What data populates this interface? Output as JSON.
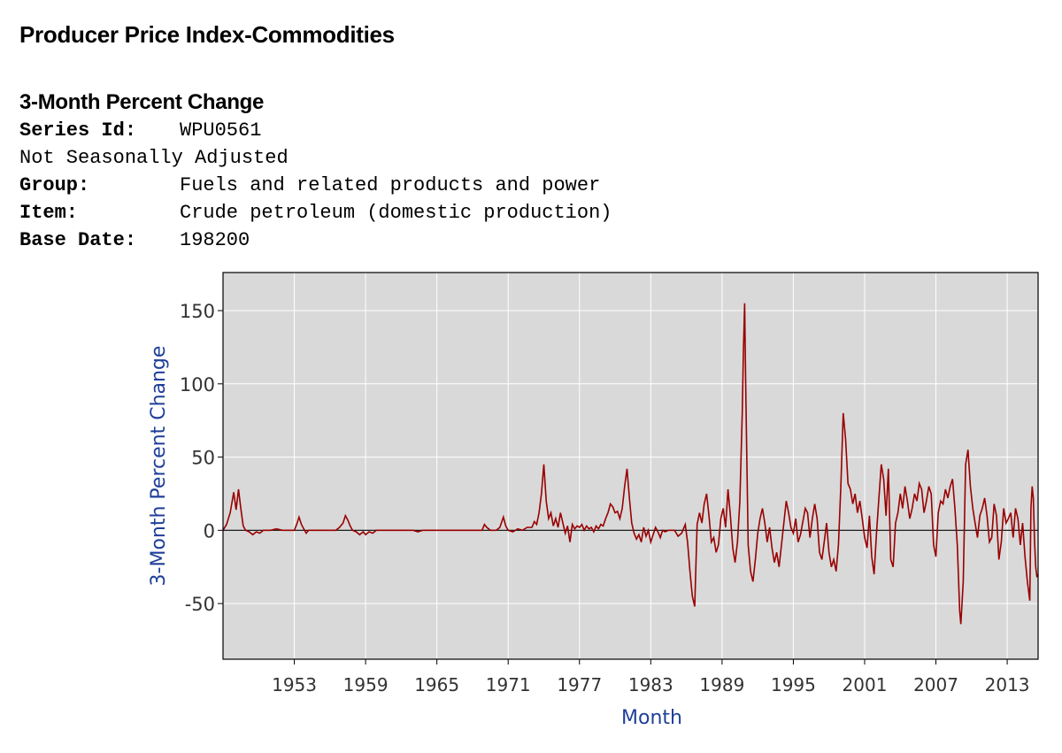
{
  "header": {
    "title": "Producer Price Index-Commodities",
    "subtitle": "3-Month Percent Change",
    "fields": [
      {
        "label": "Series Id:",
        "value": "WPU0561"
      },
      {
        "label": "",
        "value": "Not Seasonally Adjusted"
      },
      {
        "label": "Group:",
        "value": "Fuels and related products and power"
      },
      {
        "label": "Item:",
        "value": "Crude petroleum (domestic production)"
      },
      {
        "label": "Base Date:",
        "value": "198200"
      }
    ]
  },
  "colors": {
    "plot_bg": "#d9d9d9",
    "grid": "#ffffff",
    "line": "#990000",
    "zero_line": "#000000",
    "axis_title": "#1f3f99",
    "tick_text": "#333333"
  },
  "chart_data": {
    "type": "line",
    "title": "3-Month Percent Change",
    "xlabel": "Month",
    "ylabel": "3-Month Percent Change",
    "ylim": [
      -88,
      176
    ],
    "xlim": [
      1947.0,
      2015.6
    ],
    "yticks": [
      -50,
      0,
      50,
      100,
      150
    ],
    "xticks": [
      "1953",
      "1959",
      "1965",
      "1971",
      "1977",
      "1983",
      "1989",
      "1995",
      "2001",
      "2007",
      "2013"
    ],
    "grid": true,
    "series": [
      {
        "name": "WPU0561",
        "points": [
          [
            1947.0,
            0
          ],
          [
            1947.3,
            4
          ],
          [
            1947.6,
            12
          ],
          [
            1947.9,
            26
          ],
          [
            1948.1,
            14
          ],
          [
            1948.3,
            28
          ],
          [
            1948.5,
            15
          ],
          [
            1948.7,
            3
          ],
          [
            1948.9,
            0
          ],
          [
            1949.2,
            -1
          ],
          [
            1949.5,
            -3
          ],
          [
            1949.8,
            -1
          ],
          [
            1950.1,
            -2
          ],
          [
            1950.4,
            0
          ],
          [
            1951.0,
            0
          ],
          [
            1951.5,
            1
          ],
          [
            1952.0,
            0
          ],
          [
            1953.0,
            0
          ],
          [
            1953.2,
            4
          ],
          [
            1953.4,
            9
          ],
          [
            1953.6,
            4
          ],
          [
            1953.8,
            1
          ],
          [
            1954.0,
            -2
          ],
          [
            1954.2,
            0
          ],
          [
            1955.0,
            0
          ],
          [
            1956.5,
            0
          ],
          [
            1956.8,
            2
          ],
          [
            1957.1,
            5
          ],
          [
            1957.3,
            10
          ],
          [
            1957.5,
            7
          ],
          [
            1957.7,
            3
          ],
          [
            1957.9,
            0
          ],
          [
            1958.2,
            -1
          ],
          [
            1958.5,
            -3
          ],
          [
            1958.8,
            -1
          ],
          [
            1959.0,
            -3
          ],
          [
            1959.3,
            -1
          ],
          [
            1959.6,
            -2
          ],
          [
            1959.9,
            0
          ],
          [
            1960.5,
            0
          ],
          [
            1961.5,
            0
          ],
          [
            1963.0,
            0
          ],
          [
            1963.4,
            -1
          ],
          [
            1963.8,
            0
          ],
          [
            1965.0,
            0
          ],
          [
            1967.0,
            0
          ],
          [
            1968.8,
            0
          ],
          [
            1969.0,
            4
          ],
          [
            1969.2,
            2
          ],
          [
            1969.5,
            0
          ],
          [
            1970.0,
            0
          ],
          [
            1970.3,
            2
          ],
          [
            1970.6,
            9
          ],
          [
            1970.8,
            3
          ],
          [
            1971.0,
            0
          ],
          [
            1971.4,
            -1
          ],
          [
            1971.8,
            1
          ],
          [
            1972.2,
            0
          ],
          [
            1972.6,
            2
          ],
          [
            1973.0,
            2
          ],
          [
            1973.2,
            6
          ],
          [
            1973.4,
            4
          ],
          [
            1973.6,
            12
          ],
          [
            1973.8,
            25
          ],
          [
            1974.0,
            45
          ],
          [
            1974.2,
            20
          ],
          [
            1974.4,
            8
          ],
          [
            1974.6,
            12
          ],
          [
            1974.8,
            3
          ],
          [
            1975.0,
            8
          ],
          [
            1975.2,
            2
          ],
          [
            1975.4,
            12
          ],
          [
            1975.6,
            5
          ],
          [
            1975.8,
            -2
          ],
          [
            1976.0,
            3
          ],
          [
            1976.2,
            -8
          ],
          [
            1976.4,
            4
          ],
          [
            1976.6,
            1
          ],
          [
            1976.8,
            3
          ],
          [
            1977.0,
            2
          ],
          [
            1977.2,
            4
          ],
          [
            1977.4,
            0
          ],
          [
            1977.6,
            3
          ],
          [
            1977.8,
            1
          ],
          [
            1978.0,
            2
          ],
          [
            1978.2,
            -1
          ],
          [
            1978.4,
            3
          ],
          [
            1978.6,
            1
          ],
          [
            1978.8,
            4
          ],
          [
            1979.0,
            3
          ],
          [
            1979.2,
            8
          ],
          [
            1979.4,
            12
          ],
          [
            1979.6,
            18
          ],
          [
            1979.8,
            16
          ],
          [
            1980.0,
            12
          ],
          [
            1980.2,
            13
          ],
          [
            1980.4,
            8
          ],
          [
            1980.6,
            15
          ],
          [
            1980.8,
            30
          ],
          [
            1981.0,
            42
          ],
          [
            1981.2,
            22
          ],
          [
            1981.4,
            5
          ],
          [
            1981.6,
            -2
          ],
          [
            1981.8,
            -6
          ],
          [
            1982.0,
            -3
          ],
          [
            1982.2,
            -8
          ],
          [
            1982.4,
            2
          ],
          [
            1982.6,
            -4
          ],
          [
            1982.8,
            0
          ],
          [
            1983.0,
            -8
          ],
          [
            1983.2,
            -3
          ],
          [
            1983.4,
            2
          ],
          [
            1983.6,
            -1
          ],
          [
            1983.8,
            -5
          ],
          [
            1984.0,
            0
          ],
          [
            1984.2,
            -1
          ],
          [
            1984.5,
            0
          ],
          [
            1985.0,
            0
          ],
          [
            1985.3,
            -4
          ],
          [
            1985.6,
            -2
          ],
          [
            1985.9,
            4
          ],
          [
            1986.1,
            -8
          ],
          [
            1986.3,
            -28
          ],
          [
            1986.5,
            -45
          ],
          [
            1986.7,
            -52
          ],
          [
            1986.9,
            4
          ],
          [
            1987.1,
            12
          ],
          [
            1987.3,
            5
          ],
          [
            1987.5,
            18
          ],
          [
            1987.7,
            25
          ],
          [
            1987.9,
            10
          ],
          [
            1988.1,
            -8
          ],
          [
            1988.3,
            -5
          ],
          [
            1988.5,
            -15
          ],
          [
            1988.7,
            -10
          ],
          [
            1988.9,
            8
          ],
          [
            1989.1,
            15
          ],
          [
            1989.3,
            2
          ],
          [
            1989.5,
            28
          ],
          [
            1989.7,
            10
          ],
          [
            1989.9,
            -12
          ],
          [
            1990.1,
            -22
          ],
          [
            1990.3,
            -8
          ],
          [
            1990.5,
            20
          ],
          [
            1990.7,
            80
          ],
          [
            1990.8,
            122
          ],
          [
            1990.9,
            155
          ],
          [
            1991.0,
            95
          ],
          [
            1991.1,
            40
          ],
          [
            1991.2,
            -10
          ],
          [
            1991.4,
            -28
          ],
          [
            1991.6,
            -35
          ],
          [
            1991.8,
            -20
          ],
          [
            1992.0,
            -2
          ],
          [
            1992.2,
            8
          ],
          [
            1992.4,
            15
          ],
          [
            1992.6,
            5
          ],
          [
            1992.8,
            -8
          ],
          [
            1993.0,
            2
          ],
          [
            1993.2,
            -12
          ],
          [
            1993.4,
            -22
          ],
          [
            1993.6,
            -15
          ],
          [
            1993.8,
            -25
          ],
          [
            1994.0,
            -10
          ],
          [
            1994.2,
            5
          ],
          [
            1994.4,
            20
          ],
          [
            1994.6,
            12
          ],
          [
            1994.8,
            2
          ],
          [
            1995.0,
            -2
          ],
          [
            1995.2,
            8
          ],
          [
            1995.4,
            -8
          ],
          [
            1995.6,
            -3
          ],
          [
            1995.8,
            6
          ],
          [
            1996.0,
            15
          ],
          [
            1996.2,
            12
          ],
          [
            1996.4,
            -5
          ],
          [
            1996.6,
            8
          ],
          [
            1996.8,
            18
          ],
          [
            1997.0,
            8
          ],
          [
            1997.2,
            -15
          ],
          [
            1997.4,
            -20
          ],
          [
            1997.6,
            -8
          ],
          [
            1997.8,
            5
          ],
          [
            1998.0,
            -15
          ],
          [
            1998.2,
            -25
          ],
          [
            1998.4,
            -20
          ],
          [
            1998.6,
            -28
          ],
          [
            1998.8,
            -10
          ],
          [
            1999.0,
            30
          ],
          [
            1999.2,
            80
          ],
          [
            1999.4,
            62
          ],
          [
            1999.6,
            32
          ],
          [
            1999.8,
            28
          ],
          [
            2000.0,
            18
          ],
          [
            2000.2,
            25
          ],
          [
            2000.4,
            12
          ],
          [
            2000.6,
            20
          ],
          [
            2000.8,
            8
          ],
          [
            2001.0,
            -5
          ],
          [
            2001.2,
            -12
          ],
          [
            2001.4,
            10
          ],
          [
            2001.6,
            -18
          ],
          [
            2001.8,
            -30
          ],
          [
            2002.0,
            -2
          ],
          [
            2002.2,
            22
          ],
          [
            2002.4,
            45
          ],
          [
            2002.6,
            35
          ],
          [
            2002.8,
            10
          ],
          [
            2003.0,
            42
          ],
          [
            2003.2,
            -20
          ],
          [
            2003.4,
            -25
          ],
          [
            2003.6,
            5
          ],
          [
            2003.8,
            12
          ],
          [
            2004.0,
            25
          ],
          [
            2004.2,
            15
          ],
          [
            2004.4,
            30
          ],
          [
            2004.6,
            20
          ],
          [
            2004.8,
            8
          ],
          [
            2005.0,
            15
          ],
          [
            2005.2,
            25
          ],
          [
            2005.4,
            20
          ],
          [
            2005.6,
            32
          ],
          [
            2005.8,
            28
          ],
          [
            2006.0,
            12
          ],
          [
            2006.2,
            20
          ],
          [
            2006.4,
            30
          ],
          [
            2006.6,
            25
          ],
          [
            2006.8,
            -10
          ],
          [
            2007.0,
            -18
          ],
          [
            2007.2,
            12
          ],
          [
            2007.4,
            20
          ],
          [
            2007.6,
            18
          ],
          [
            2007.8,
            28
          ],
          [
            2008.0,
            22
          ],
          [
            2008.2,
            30
          ],
          [
            2008.4,
            35
          ],
          [
            2008.6,
            15
          ],
          [
            2008.8,
            -10
          ],
          [
            2009.0,
            -55
          ],
          [
            2009.1,
            -64
          ],
          [
            2009.3,
            -35
          ],
          [
            2009.5,
            45
          ],
          [
            2009.7,
            55
          ],
          [
            2009.9,
            30
          ],
          [
            2010.1,
            15
          ],
          [
            2010.3,
            5
          ],
          [
            2010.5,
            -5
          ],
          [
            2010.7,
            10
          ],
          [
            2010.9,
            15
          ],
          [
            2011.1,
            22
          ],
          [
            2011.3,
            10
          ],
          [
            2011.5,
            -8
          ],
          [
            2011.7,
            -5
          ],
          [
            2011.9,
            18
          ],
          [
            2012.1,
            10
          ],
          [
            2012.3,
            -20
          ],
          [
            2012.5,
            -8
          ],
          [
            2012.7,
            15
          ],
          [
            2012.9,
            5
          ],
          [
            2013.1,
            8
          ],
          [
            2013.3,
            12
          ],
          [
            2013.5,
            -5
          ],
          [
            2013.7,
            15
          ],
          [
            2013.9,
            8
          ],
          [
            2014.1,
            -10
          ],
          [
            2014.3,
            5
          ],
          [
            2014.5,
            -18
          ],
          [
            2014.7,
            -35
          ],
          [
            2014.9,
            -48
          ],
          [
            2015.0,
            15
          ],
          [
            2015.1,
            30
          ],
          [
            2015.2,
            22
          ],
          [
            2015.3,
            -8
          ],
          [
            2015.4,
            -25
          ],
          [
            2015.5,
            -32
          ],
          [
            2015.6,
            -30
          ]
        ]
      }
    ]
  }
}
